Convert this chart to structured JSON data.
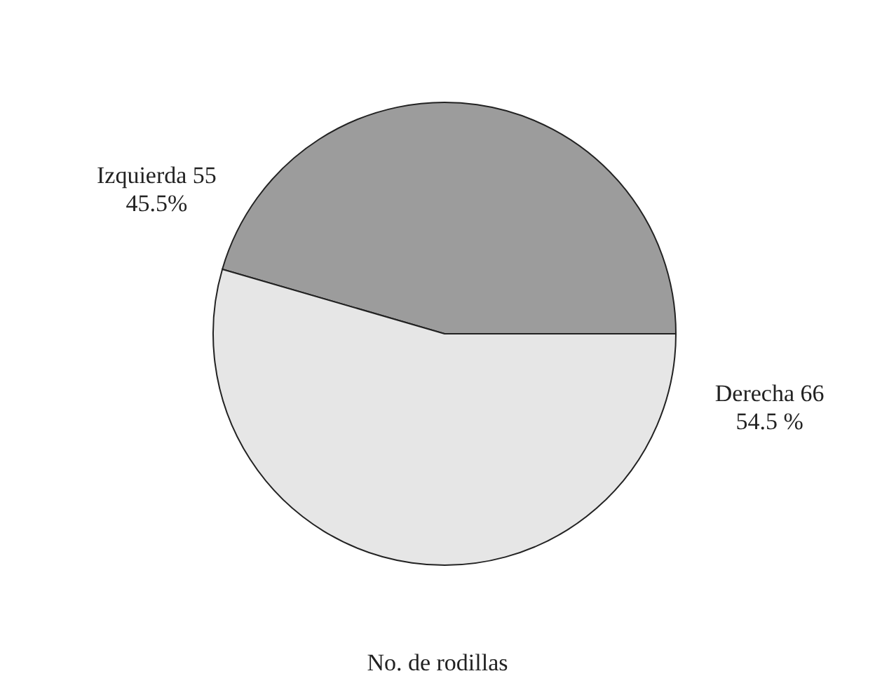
{
  "chart_data": {
    "type": "pie",
    "title": "No. de rodillas",
    "categories": [
      "Izquierda 55",
      "Derecha 66"
    ],
    "values": [
      45.5,
      54.5
    ],
    "colors": [
      "#9c9c9c",
      "#e6e6e6"
    ],
    "value_labels": [
      "45.5%",
      "54.5 %"
    ],
    "legend": false
  }
}
